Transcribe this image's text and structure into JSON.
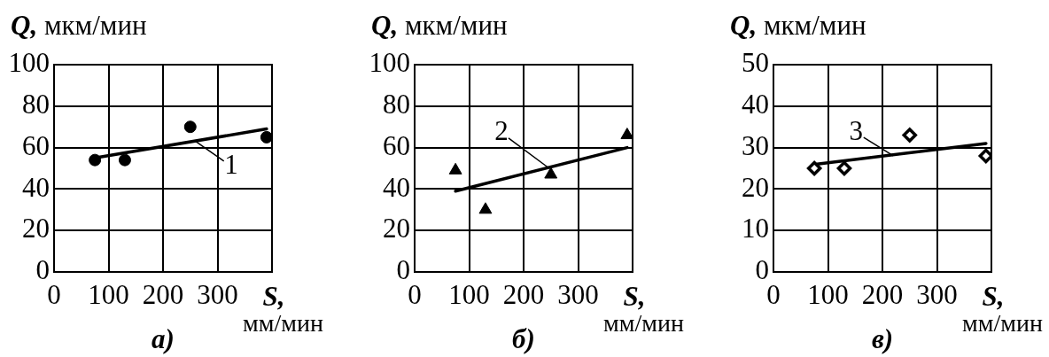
{
  "chart_data": [
    {
      "type": "scatter",
      "title": "а)",
      "xlabel": "S, мм/мин",
      "ylabel": "Q, мкм/мин",
      "xlim": [
        0,
        400
      ],
      "xticks": [
        0,
        100,
        200,
        300
      ],
      "ylim": [
        0,
        100
      ],
      "yticks": [
        0,
        20,
        40,
        60,
        80,
        100
      ],
      "grid": true,
      "series": [
        {
          "type": "scatter",
          "x": [
            75,
            130,
            250,
            390
          ],
          "values": [
            54,
            54,
            70,
            65
          ],
          "color": "#000000",
          "marker": "circle"
        },
        {
          "type": "line",
          "x": [
            75,
            390
          ],
          "values": [
            55,
            69
          ],
          "color": "#000000",
          "marker": "none"
        }
      ],
      "annotations": [
        {
          "text": "1",
          "x": 260,
          "y": 63
        }
      ]
    },
    {
      "type": "scatter",
      "title": "б)",
      "xlabel": "S, мм/мин",
      "ylabel": "Q, мкм/мин",
      "xlim": [
        0,
        400
      ],
      "xticks": [
        0,
        100,
        200,
        300
      ],
      "ylim": [
        0,
        100
      ],
      "yticks": [
        0,
        20,
        40,
        60,
        80,
        100
      ],
      "grid": true,
      "series": [
        {
          "type": "scatter",
          "x": [
            75,
            130,
            250,
            390
          ],
          "values": [
            49,
            30,
            47,
            66
          ],
          "color": "#000000",
          "marker": "triangle"
        },
        {
          "type": "line",
          "x": [
            75,
            390
          ],
          "values": [
            39,
            60
          ],
          "color": "#000000",
          "marker": "none"
        }
      ],
      "annotations": [
        {
          "text": "2",
          "x": 247,
          "y": 50
        }
      ]
    },
    {
      "type": "scatter",
      "title": "в)",
      "xlabel": "S, мм/мин",
      "ylabel": "Q, мкм/мин",
      "xlim": [
        0,
        400
      ],
      "xticks": [
        0,
        100,
        200,
        300
      ],
      "ylim": [
        0,
        50
      ],
      "yticks": [
        0,
        10,
        20,
        30,
        40,
        50
      ],
      "grid": true,
      "series": [
        {
          "type": "scatter",
          "x": [
            75,
            130,
            250,
            390
          ],
          "values": [
            25,
            25,
            33,
            28
          ],
          "color": "#000000",
          "marker": "diamond"
        },
        {
          "type": "line",
          "x": [
            80,
            390
          ],
          "values": [
            26,
            31
          ],
          "color": "#000000",
          "marker": "none"
        }
      ],
      "annotations": [
        {
          "text": "3",
          "x": 220,
          "y": 28
        }
      ]
    }
  ]
}
